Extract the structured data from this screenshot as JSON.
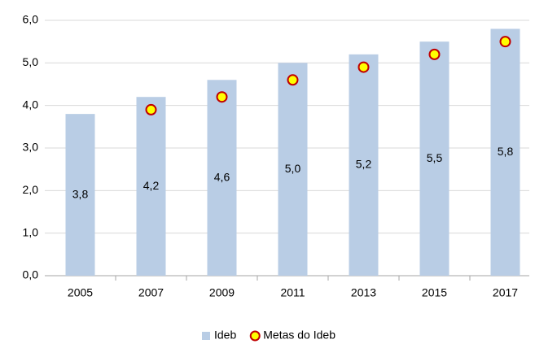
{
  "chart_data": {
    "type": "bar",
    "categories": [
      "2005",
      "2007",
      "2009",
      "2011",
      "2013",
      "2015",
      "2017"
    ],
    "series": [
      {
        "name": "Ideb",
        "type": "bar",
        "color": "#b9cde5",
        "values": [
          3.8,
          4.2,
          4.6,
          5.0,
          5.2,
          5.5,
          5.8
        ],
        "value_labels": [
          "3,8",
          "4,2",
          "4,6",
          "5,0",
          "5,2",
          "5,5",
          "5,8"
        ]
      },
      {
        "name": "Metas do Ideb",
        "type": "scatter",
        "color": "#ffff00",
        "edgecolor": "#c00000",
        "values": [
          null,
          3.9,
          4.2,
          4.6,
          4.9,
          5.2,
          5.5
        ]
      }
    ],
    "ylim": [
      0,
      6
    ],
    "yticks": [
      {
        "value": 0,
        "label": "0,0"
      },
      {
        "value": 1,
        "label": "1,0"
      },
      {
        "value": 2,
        "label": "2,0"
      },
      {
        "value": 3,
        "label": "3,0"
      },
      {
        "value": 4,
        "label": "4,0"
      },
      {
        "value": 5,
        "label": "5,0"
      },
      {
        "value": 6,
        "label": "6,0"
      }
    ],
    "grid": true,
    "legend": "bottom"
  }
}
